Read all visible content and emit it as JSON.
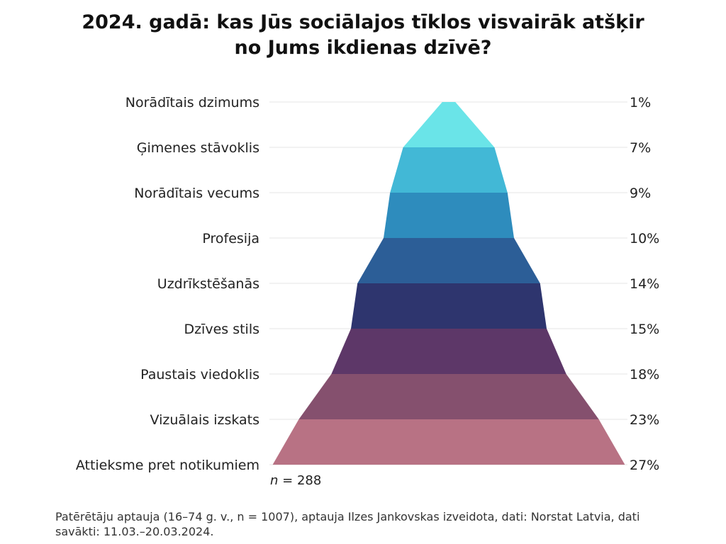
{
  "title_line1": "2024. gadā: kas Jūs sociālajos tīklos visvairāk atšķir",
  "title_line2": "no Jums ikdienas dzīvē?",
  "n_label": "n",
  "n_value": "= 288",
  "source": "Patērētāju aptauja (16–74 g. v., n = 1007), aptauja Ilzes Jankovskas izveidota, dati: Norstat Latvia, dati savākti: 11.03.–20.03.2024.",
  "chart_data": {
    "type": "bar",
    "subtype": "pyramid-funnel",
    "categories": [
      "Norādītais dzimums",
      "Ģimenes stāvoklis",
      "Norādītais vecums",
      "Profesija",
      "Uzdrīkstēšanās",
      "Dzīves stils",
      "Paustais viedoklis",
      "Vizuālais izskats",
      "Attieksme pret notikumiem"
    ],
    "values": [
      1,
      7,
      9,
      10,
      14,
      15,
      18,
      23,
      27
    ],
    "value_labels": [
      "1%",
      "7%",
      "9%",
      "10%",
      "14%",
      "15%",
      "18%",
      "23%",
      "27%"
    ],
    "unit": "%",
    "colors": [
      "#6ae4e8",
      "#42b8d6",
      "#2e8cbd",
      "#2c5e97",
      "#2e356e",
      "#5d3768",
      "#85506e",
      "#b87284"
    ],
    "gridline_color": "#e6e6e6"
  }
}
